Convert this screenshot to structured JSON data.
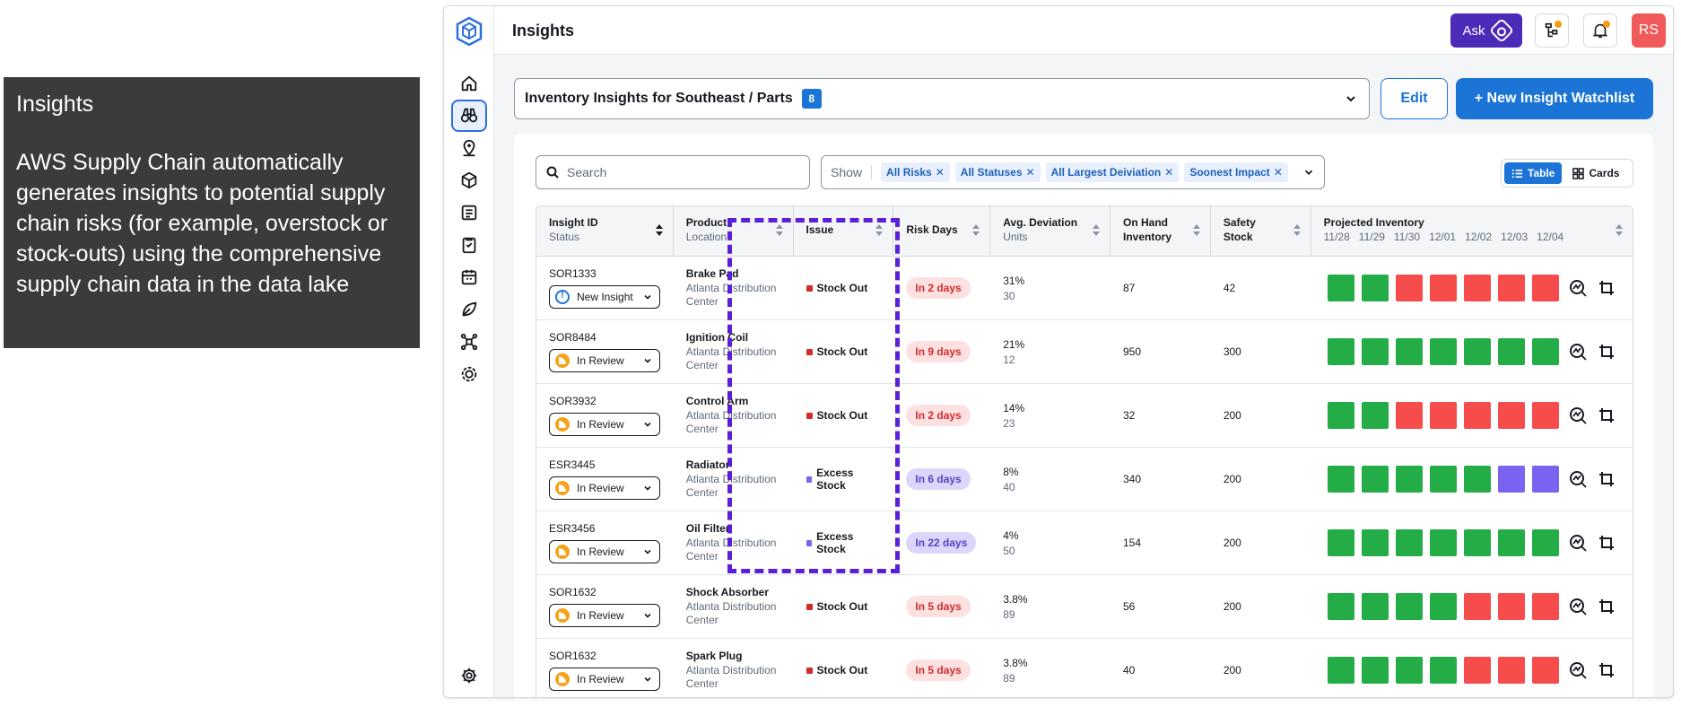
{
  "caption": {
    "title": "Insights",
    "text": "AWS Supply Chain automatically generates insights to potential supply chain risks (for example, overstock or stock-outs) using the comprehensive supply chain data in the data lake"
  },
  "header": {
    "title": "Insights",
    "ask_label": "Ask",
    "avatar_initials": "RS"
  },
  "watchlist": {
    "label": "Inventory Insights for Southeast / Parts",
    "count": "8",
    "edit_label": "Edit",
    "new_label": "+ New Insight Watchlist"
  },
  "filters": {
    "search_placeholder": "Search",
    "show_label": "Show",
    "chips": [
      "All Risks",
      "All Statuses",
      "All Largest Deiviation",
      "Soonest Impact"
    ]
  },
  "view_toggle": {
    "table": "Table",
    "cards": "Cards"
  },
  "columns": {
    "insight_id": "Insight ID",
    "status": "Status",
    "product": "Product",
    "location": "Location",
    "issue": "Issue",
    "risk_days": "Risk Days",
    "avg_deviation": "Avg. Deviation",
    "units": "Units",
    "on_hand_1": "On Hand",
    "on_hand_2": "Inventory",
    "safety_1": "Safety",
    "safety_2": "Stock",
    "projected": "Projected Inventory",
    "dates": [
      "11/28",
      "11/29",
      "11/30",
      "12/01",
      "12/02",
      "12/03",
      "12/04"
    ]
  },
  "colors": {
    "green": "#24ad47",
    "red": "#f64c4c",
    "purple": "#7b63f2"
  },
  "rows": [
    {
      "id": "SOR1333",
      "status": "New Insight",
      "status_type": "new",
      "product": "Brake Pad",
      "location": "Atlanta Distribution Center",
      "issue": "Stock Out",
      "issue_type": "out",
      "risk": "In 2 days",
      "deviation": "31%",
      "units": "30",
      "on_hand": "87",
      "safety": "42",
      "projection": [
        "green",
        "green",
        "red",
        "red",
        "red",
        "red",
        "red"
      ]
    },
    {
      "id": "SOR8484",
      "status": "In Review",
      "status_type": "review",
      "product": "Ignition Coil",
      "location": "Atlanta Distribution Center",
      "issue": "Stock Out",
      "issue_type": "out",
      "risk": "In 9 days",
      "deviation": "21%",
      "units": "12",
      "on_hand": "950",
      "safety": "300",
      "projection": [
        "green",
        "green",
        "green",
        "green",
        "green",
        "green",
        "green"
      ]
    },
    {
      "id": "SOR3932",
      "status": "In Review",
      "status_type": "review",
      "product": "Control Arm",
      "location": "Atlanta Distribution Center",
      "issue": "Stock Out",
      "issue_type": "out",
      "risk": "In 2 days",
      "deviation": "14%",
      "units": "23",
      "on_hand": "32",
      "safety": "200",
      "projection": [
        "green",
        "green",
        "red",
        "red",
        "red",
        "red",
        "red"
      ]
    },
    {
      "id": "ESR3445",
      "status": "In Review",
      "status_type": "review",
      "product": "Radiator",
      "location": "Atlanta Distribution Center",
      "issue": "Excess Stock",
      "issue_type": "excess",
      "risk": "In 6 days",
      "deviation": "8%",
      "units": "40",
      "on_hand": "340",
      "safety": "200",
      "projection": [
        "green",
        "green",
        "green",
        "green",
        "green",
        "purple",
        "purple"
      ]
    },
    {
      "id": "ESR3456",
      "status": "In Review",
      "status_type": "review",
      "product": "Oil Filter",
      "location": "Atlanta Distribution Center",
      "issue": "Excess Stock",
      "issue_type": "excess",
      "risk": "In 22 days",
      "deviation": "4%",
      "units": "50",
      "on_hand": "154",
      "safety": "200",
      "projection": [
        "green",
        "green",
        "green",
        "green",
        "green",
        "green",
        "green"
      ]
    },
    {
      "id": "SOR1632",
      "status": "In Review",
      "status_type": "review",
      "product": "Shock Absorber",
      "location": "Atlanta Distribution Center",
      "issue": "Stock Out",
      "issue_type": "out",
      "risk": "In 5 days",
      "deviation": "3.8%",
      "units": "89",
      "on_hand": "56",
      "safety": "200",
      "projection": [
        "green",
        "green",
        "green",
        "green",
        "red",
        "red",
        "red"
      ]
    },
    {
      "id": "SOR1632",
      "status": "In Review",
      "status_type": "review",
      "product": "Spark Plug",
      "location": "Atlanta Distribution Center",
      "issue": "Stock Out",
      "issue_type": "out",
      "risk": "In 5 days",
      "deviation": "3.8%",
      "units": "89",
      "on_hand": "40",
      "safety": "200",
      "projection": [
        "green",
        "green",
        "green",
        "green",
        "red",
        "red",
        "red"
      ]
    }
  ]
}
